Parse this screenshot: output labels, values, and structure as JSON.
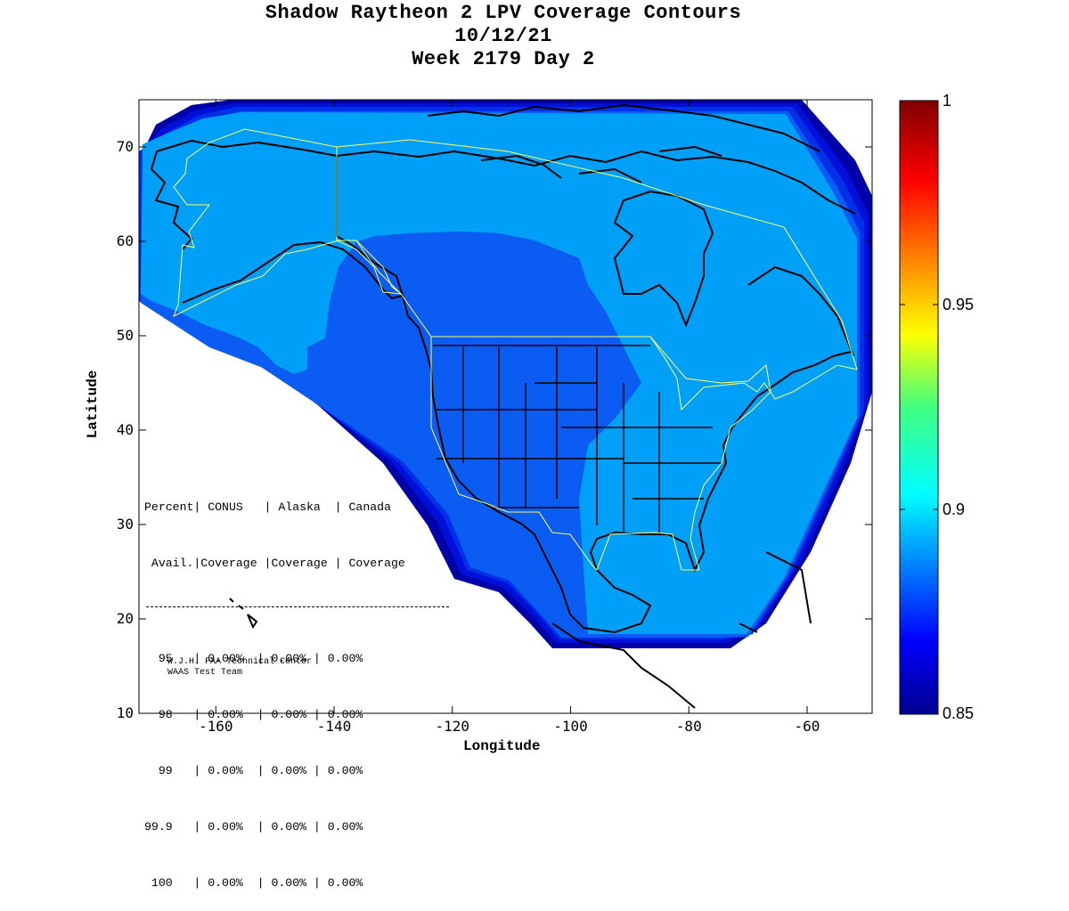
{
  "title": {
    "line1": "Shadow Raytheon 2 LPV Coverage Contours",
    "line2": "10/12/21",
    "line3": "Week 2179 Day 2"
  },
  "axes": {
    "xlabel": "Longitude",
    "ylabel": "Latitude",
    "xlim": [
      -173,
      -49
    ],
    "ylim": [
      10,
      75
    ],
    "xticks": [
      "-160",
      "-140",
      "-120",
      "-100",
      "-80",
      "-60"
    ],
    "yticks": [
      "70",
      "60",
      "50",
      "40",
      "30",
      "20",
      "10"
    ]
  },
  "colorbar": {
    "ticks": [
      "1",
      "0.95",
      "0.9",
      "0.85"
    ],
    "range": [
      0.85,
      1
    ],
    "colormap": "jet"
  },
  "table": {
    "header1": "Percent| CONUS   | Alaska  | Canada",
    "header2": " Avail.|Coverage |Coverage | Coverage",
    "rows": [
      "  95   | 0.00%  | 0.00% | 0.00%",
      "  98   | 0.00%  | 0.00% | 0.00%",
      "  99   | 0.00%  | 0.00% | 0.00%",
      "99.9   | 0.00%  | 0.00% | 0.00%",
      " 100   | 0.00%  | 0.00% | 0.00%"
    ]
  },
  "credits": {
    "line1": "W.J.H. FAA Technical Center",
    "line2": "WAAS Test Team"
  },
  "colors": {
    "outer_band_dark": "#0000a8",
    "band_2": "#0020e0",
    "band_3": "#0050f0",
    "mid_blue": "#0a60f0",
    "light_blue": "#00a0f8",
    "service_volume_outline": "#ffff66"
  }
}
